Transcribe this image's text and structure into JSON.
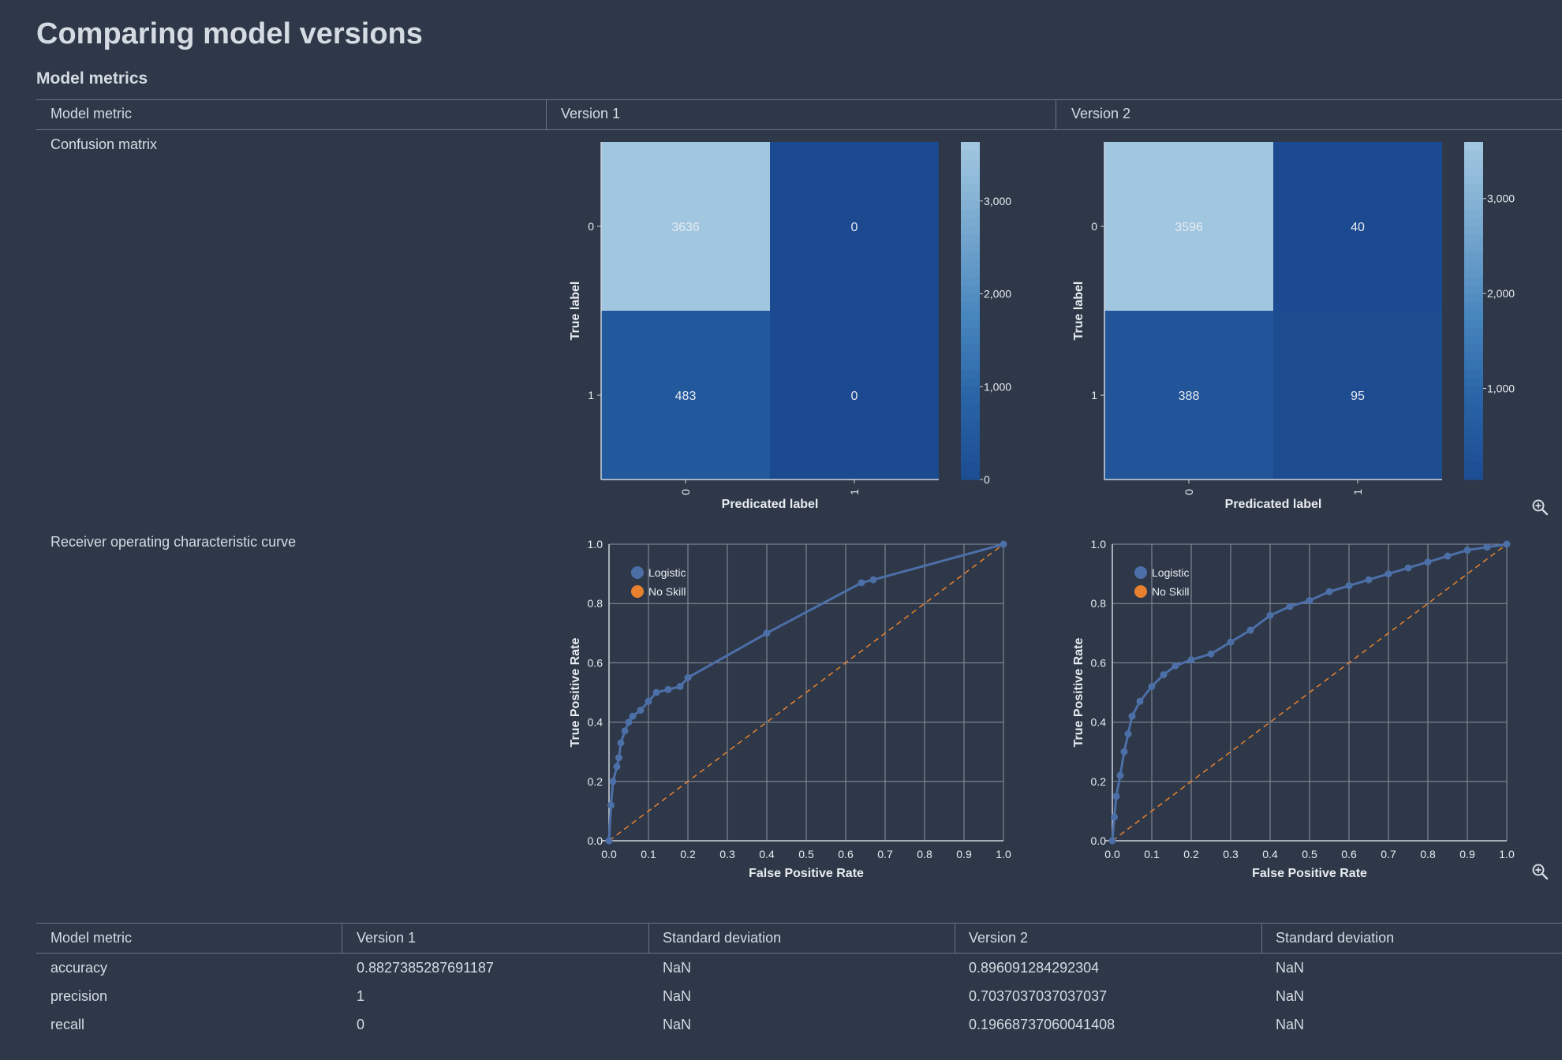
{
  "page": {
    "title": "Comparing model versions",
    "subtitle": "Model metrics"
  },
  "colors": {
    "background": "#2e3848",
    "text": "#d5dbe3",
    "rule": "#6b7483",
    "logistic": "#4c6fa8",
    "noskill": "#e8812f"
  },
  "top_table": {
    "headers": [
      "Model metric",
      "Version 1",
      "Version 2"
    ],
    "rows": [
      "Confusion matrix",
      "Receiver operating characteristic curve"
    ]
  },
  "zoom_icon": "magnifier-plus-icon",
  "chart_data": [
    {
      "type": "heatmap",
      "version": "Version 1",
      "title": "",
      "xlabel": "Predicated label",
      "ylabel": "True label",
      "x_categories": [
        "0",
        "1"
      ],
      "y_categories": [
        "0",
        "1"
      ],
      "matrix": [
        [
          3636,
          0
        ],
        [
          483,
          0
        ]
      ],
      "colorbar": {
        "min": 0,
        "max": 3636,
        "ticks": [
          0,
          1000,
          2000,
          3000
        ],
        "tick_labels": [
          "0",
          "1,000",
          "2,000",
          "3,000"
        ]
      }
    },
    {
      "type": "heatmap",
      "version": "Version 2",
      "title": "",
      "xlabel": "Predicated label",
      "ylabel": "True label",
      "x_categories": [
        "0",
        "1"
      ],
      "y_categories": [
        "0",
        "1"
      ],
      "matrix": [
        [
          3596,
          40
        ],
        [
          388,
          95
        ]
      ],
      "colorbar": {
        "min": 40,
        "max": 3596,
        "ticks": [
          1000,
          2000,
          3000
        ],
        "tick_labels": [
          "1,000",
          "2,000",
          "3,000"
        ]
      }
    },
    {
      "type": "line",
      "version": "Version 1",
      "title": "",
      "xlabel": "False Positive Rate",
      "ylabel": "True Positive Rate",
      "xlim": [
        0,
        1
      ],
      "ylim": [
        0,
        1
      ],
      "xticks": [
        "0.0",
        "0.1",
        "0.2",
        "0.3",
        "0.4",
        "0.5",
        "0.6",
        "0.7",
        "0.8",
        "0.9",
        "1.0"
      ],
      "yticks": [
        "0.0",
        "0.2",
        "0.4",
        "0.6",
        "0.8",
        "1.0"
      ],
      "grid": true,
      "legend": "top-left",
      "series": [
        {
          "name": "Logistic",
          "points": [
            [
              0,
              0
            ],
            [
              0.005,
              0.12
            ],
            [
              0.01,
              0.2
            ],
            [
              0.02,
              0.25
            ],
            [
              0.025,
              0.28
            ],
            [
              0.03,
              0.33
            ],
            [
              0.04,
              0.37
            ],
            [
              0.05,
              0.4
            ],
            [
              0.06,
              0.42
            ],
            [
              0.08,
              0.44
            ],
            [
              0.1,
              0.47
            ],
            [
              0.12,
              0.5
            ],
            [
              0.15,
              0.51
            ],
            [
              0.18,
              0.52
            ],
            [
              0.2,
              0.55
            ],
            [
              0.4,
              0.7
            ],
            [
              0.64,
              0.87
            ],
            [
              0.67,
              0.88
            ],
            [
              1,
              1
            ]
          ]
        },
        {
          "name": "No Skill",
          "points": [
            [
              0,
              0
            ],
            [
              1,
              1
            ]
          ]
        }
      ]
    },
    {
      "type": "line",
      "version": "Version 2",
      "title": "",
      "xlabel": "False Positive Rate",
      "ylabel": "True Positive Rate",
      "xlim": [
        0,
        1
      ],
      "ylim": [
        0,
        1
      ],
      "xticks": [
        "0.0",
        "0.1",
        "0.2",
        "0.3",
        "0.4",
        "0.5",
        "0.6",
        "0.7",
        "0.8",
        "0.9",
        "1.0"
      ],
      "yticks": [
        "0.0",
        "0.2",
        "0.4",
        "0.6",
        "0.8",
        "1.0"
      ],
      "grid": true,
      "legend": "top-left",
      "series": [
        {
          "name": "Logistic",
          "points": [
            [
              0,
              0
            ],
            [
              0.005,
              0.08
            ],
            [
              0.01,
              0.15
            ],
            [
              0.02,
              0.22
            ],
            [
              0.03,
              0.3
            ],
            [
              0.04,
              0.36
            ],
            [
              0.05,
              0.42
            ],
            [
              0.07,
              0.47
            ],
            [
              0.1,
              0.52
            ],
            [
              0.13,
              0.56
            ],
            [
              0.16,
              0.59
            ],
            [
              0.2,
              0.61
            ],
            [
              0.25,
              0.63
            ],
            [
              0.3,
              0.67
            ],
            [
              0.35,
              0.71
            ],
            [
              0.4,
              0.76
            ],
            [
              0.45,
              0.79
            ],
            [
              0.5,
              0.81
            ],
            [
              0.55,
              0.84
            ],
            [
              0.6,
              0.86
            ],
            [
              0.65,
              0.88
            ],
            [
              0.7,
              0.9
            ],
            [
              0.75,
              0.92
            ],
            [
              0.8,
              0.94
            ],
            [
              0.85,
              0.96
            ],
            [
              0.9,
              0.98
            ],
            [
              0.95,
              0.99
            ],
            [
              1,
              1
            ]
          ]
        },
        {
          "name": "No Skill",
          "points": [
            [
              0,
              0
            ],
            [
              1,
              1
            ]
          ]
        }
      ]
    }
  ],
  "bottom_table": {
    "headers": [
      "Model metric",
      "Version 1",
      "Standard deviation",
      "Version 2",
      "Standard deviation"
    ],
    "rows": [
      [
        "accuracy",
        "0.8827385287691187",
        "NaN",
        "0.896091284292304",
        "NaN"
      ],
      [
        "precision",
        "1",
        "NaN",
        "0.7037037037037037",
        "NaN"
      ],
      [
        "recall",
        "0",
        "NaN",
        "0.19668737060041408",
        "NaN"
      ]
    ]
  }
}
